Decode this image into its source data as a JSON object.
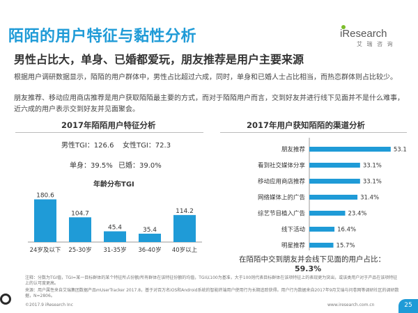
{
  "header": {
    "title": "陌陌的用户特征与黏性分析",
    "logo_text": "iResearch",
    "logo_sub": "艾 瑞 咨 询"
  },
  "subtitle": "男性占比大，单身、已婚都爱玩，朋友推荐是用户主要来源",
  "paragraphs": [
    "根据用户调研数据显示，陌陌的用户群体中，男性占比超过六成，同时，单身和已婚人士占比相当，而热恋群体则占比较少。",
    "朋友推荐、移动应用商店推荐是用户获取陌陌最主要的方式，而对于陌陌用户而言，交到好友并进行线下见面并不是什么难事，近六成的用户表示交到好友并见面聚会。"
  ],
  "left_panel": {
    "title": "2017年陌陌用户特征分析",
    "male_tgi": "男性TGI：126.6",
    "female_tgi": "女性TGI：72.3",
    "single": "单身：39.5%",
    "married": "已婚：39.0%",
    "age_title": "年龄分布TGI"
  },
  "right_panel": {
    "title": "2017年用户获知陌陌的渠道分析",
    "summary_line1": "在陌陌中交到朋友并会线下见面的用户占比：",
    "summary_line2": "59.3%"
  },
  "chart_data": [
    {
      "type": "bar",
      "title": "年龄分布TGI",
      "categories": [
        "24岁及以下",
        "25-30岁",
        "31-35岁",
        "36-40岁",
        "40岁以上"
      ],
      "values": [
        180.6,
        104.7,
        45.4,
        35.4,
        114.2
      ],
      "value_labels": [
        "180.6",
        "104.7",
        "45.4",
        "35.4",
        "114.2"
      ],
      "ylim": [
        0,
        200
      ],
      "color": "#1f9bd7",
      "grid": false
    },
    {
      "type": "bar",
      "orientation": "horizontal",
      "title": "2017年用户获知陌陌的渠道分析",
      "categories": [
        "朋友推荐",
        "看到社交媒体分享",
        "移动应用商店推荐",
        "网络媒体上的广告",
        "综艺节目植入广告",
        "线下活动",
        "明星推荐"
      ],
      "values": [
        53.1,
        33.1,
        33.1,
        31.4,
        23.4,
        16.4,
        15.7
      ],
      "value_labels": [
        "53.1%",
        "33.1%",
        "33.1%",
        "31.4%",
        "23.4%",
        "16.4%",
        "15.7%"
      ],
      "xlim": [
        0,
        60
      ],
      "color": "#1f9bd7",
      "grid": false
    }
  ],
  "footnotes": [
    "注释：分数为TGI值，TGI=某一目标群体的某个特征所占份额/所有群体在该特征份额的均值，TGI以100为基准，大于100则代表目标群体在该项特征上的表现更为突出，或该类用户对于产品在该项特征上的认可度更高。",
    "来源：用户属性来自艾瑞集团数据产品mUserTracker 2017.8，基于对百万名iOS和Android系统的智能终端用户使用行为长期追踪获得。用户行为数据来自2017年9月艾瑞与问卷网等调研社区的调研数据，N=2806。"
  ],
  "footer": {
    "copyright": "©2017.9 iResearch Inc",
    "site": "www.iresearch.com.cn",
    "page": "25"
  }
}
